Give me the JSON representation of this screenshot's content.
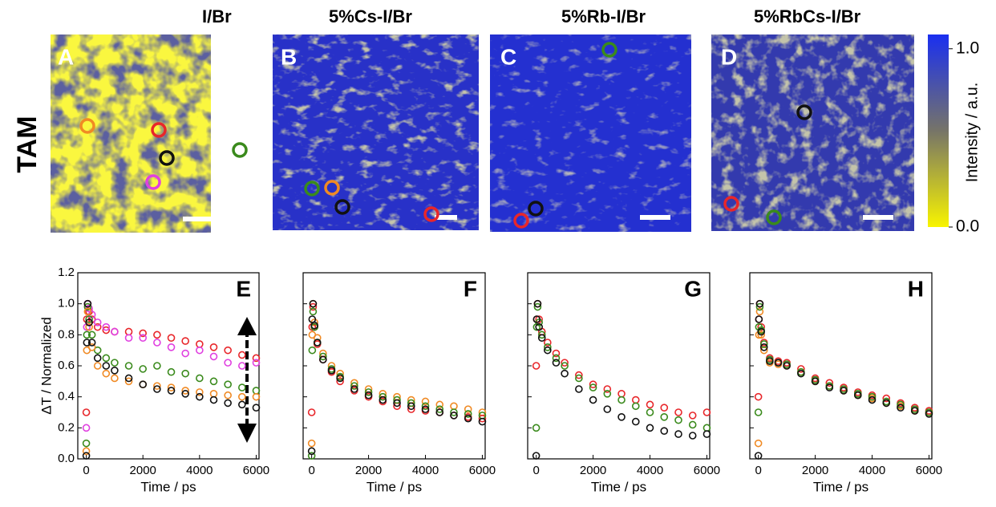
{
  "row_label": "TAM",
  "maps": [
    {
      "title": "I/Br",
      "label": "A"
    },
    {
      "title": "5%Cs-I/Br",
      "label": "B"
    },
    {
      "title": "5%Rb-I/Br",
      "label": "C"
    },
    {
      "title": "5%RbCs-I/Br",
      "label": "D"
    }
  ],
  "colorbar": {
    "label": "Intensity / a.u.",
    "lim": [
      0,
      1.08
    ],
    "ticks": [
      {
        "value": 1.0,
        "label": "1.0"
      },
      {
        "value": 0.0,
        "label": "0.0"
      }
    ]
  },
  "chart_data": [
    {
      "type": "scatter",
      "panel_label": "E",
      "xlabel": "Time / ps",
      "ylabel": "ΔT / Normalized",
      "x": [
        0,
        20,
        50,
        100,
        200,
        400,
        700,
        1000,
        1500,
        2000,
        2500,
        3000,
        3500,
        4000,
        4500,
        5000,
        5500,
        6000
      ],
      "series": [
        {
          "color": "#e8262a",
          "values": [
            0.3,
            0.9,
            1.0,
            0.95,
            0.9,
            0.85,
            0.83,
            0.82,
            0.82,
            0.81,
            0.8,
            0.78,
            0.76,
            0.74,
            0.72,
            0.7,
            0.67,
            0.65
          ]
        },
        {
          "color": "#e040e0",
          "values": [
            0.2,
            0.85,
            1.0,
            0.97,
            0.93,
            0.88,
            0.85,
            0.82,
            0.78,
            0.78,
            0.75,
            0.72,
            0.68,
            0.7,
            0.66,
            0.62,
            0.6,
            0.62
          ]
        },
        {
          "color": "#3a8a1c",
          "values": [
            0.1,
            0.8,
            0.98,
            0.9,
            0.8,
            0.7,
            0.65,
            0.62,
            0.6,
            0.58,
            0.6,
            0.56,
            0.55,
            0.52,
            0.5,
            0.48,
            0.46,
            0.44
          ]
        },
        {
          "color": "#f08a24",
          "values": [
            0.05,
            0.7,
            0.95,
            0.85,
            0.72,
            0.6,
            0.55,
            0.52,
            0.5,
            0.48,
            0.47,
            0.46,
            0.44,
            0.43,
            0.42,
            0.41,
            0.4,
            0.4
          ]
        },
        {
          "color": "#111111",
          "values": [
            0.02,
            0.75,
            1.0,
            0.88,
            0.75,
            0.65,
            0.6,
            0.57,
            0.52,
            0.48,
            0.45,
            0.44,
            0.42,
            0.4,
            0.38,
            0.36,
            0.35,
            0.33
          ]
        }
      ],
      "xlim": [
        -300,
        6100
      ],
      "ylim": [
        0,
        1.2
      ],
      "xticks": [
        0,
        2000,
        4000,
        6000
      ],
      "yticks": [
        {
          "value": 0,
          "label": "0.0"
        },
        {
          "value": 0.2,
          "label": "0.2"
        },
        {
          "value": 0.4,
          "label": "0.4"
        },
        {
          "value": 0.6,
          "label": "0.6"
        },
        {
          "value": 0.8,
          "label": "0.8"
        },
        {
          "value": 1.0,
          "label": "1.0"
        },
        {
          "value": 1.2,
          "label": "1.2"
        }
      ]
    },
    {
      "type": "scatter",
      "panel_label": "F",
      "xlabel": "Time / ps",
      "x": [
        0,
        20,
        50,
        100,
        200,
        400,
        700,
        1000,
        1500,
        2000,
        2500,
        3000,
        3500,
        4000,
        4500,
        5000,
        5500,
        6000
      ],
      "series": [
        {
          "color": "#f08a24",
          "values": [
            0.1,
            0.8,
            1.0,
            0.88,
            0.78,
            0.68,
            0.6,
            0.55,
            0.49,
            0.45,
            0.42,
            0.4,
            0.38,
            0.37,
            0.35,
            0.34,
            0.32,
            0.3
          ]
        },
        {
          "color": "#e8262a",
          "values": [
            0.3,
            0.85,
            0.98,
            0.85,
            0.74,
            0.64,
            0.56,
            0.5,
            0.44,
            0.4,
            0.37,
            0.34,
            0.32,
            0.31,
            0.3,
            0.28,
            0.27,
            0.26
          ]
        },
        {
          "color": "#3a8a1c",
          "values": [
            0.02,
            0.7,
            0.95,
            0.85,
            0.75,
            0.66,
            0.58,
            0.53,
            0.47,
            0.43,
            0.4,
            0.38,
            0.36,
            0.34,
            0.32,
            0.3,
            0.29,
            0.28
          ]
        },
        {
          "color": "#111111",
          "values": [
            0.05,
            0.9,
            1.0,
            0.86,
            0.75,
            0.64,
            0.57,
            0.52,
            0.45,
            0.41,
            0.38,
            0.36,
            0.34,
            0.32,
            0.3,
            0.28,
            0.26,
            0.24
          ]
        }
      ],
      "xlim": [
        -300,
        6100
      ],
      "ylim": [
        0,
        1.2
      ],
      "xticks": [
        0,
        2000,
        4000,
        6000
      ],
      "yticks": [
        0,
        0.2,
        0.4,
        0.6,
        0.8,
        1.0,
        1.2
      ]
    },
    {
      "type": "scatter",
      "panel_label": "G",
      "xlabel": "Time / ps",
      "x": [
        0,
        20,
        50,
        100,
        200,
        400,
        700,
        1000,
        1500,
        2000,
        2500,
        3000,
        3500,
        4000,
        4500,
        5000,
        5500,
        6000
      ],
      "series": [
        {
          "color": "#e8262a",
          "values": [
            0.6,
            0.9,
            1.0,
            0.9,
            0.82,
            0.75,
            0.68,
            0.62,
            0.54,
            0.48,
            0.45,
            0.42,
            0.38,
            0.35,
            0.33,
            0.3,
            0.28,
            0.3
          ]
        },
        {
          "color": "#3a8a1c",
          "values": [
            0.2,
            0.85,
            0.98,
            0.88,
            0.8,
            0.72,
            0.65,
            0.6,
            0.52,
            0.46,
            0.42,
            0.38,
            0.34,
            0.3,
            0.27,
            0.25,
            0.22,
            0.2
          ]
        },
        {
          "color": "#111111",
          "values": [
            0.02,
            0.9,
            1.0,
            0.85,
            0.78,
            0.7,
            0.62,
            0.55,
            0.45,
            0.38,
            0.32,
            0.27,
            0.24,
            0.2,
            0.18,
            0.16,
            0.15,
            0.16
          ]
        }
      ],
      "xlim": [
        -300,
        6100
      ],
      "ylim": [
        0,
        1.2
      ],
      "xticks": [
        0,
        2000,
        4000,
        6000
      ],
      "yticks": [
        0,
        0.2,
        0.4,
        0.6,
        0.8,
        1.0,
        1.2
      ]
    },
    {
      "type": "scatter",
      "panel_label": "H",
      "xlabel": "Time / ps",
      "x": [
        0,
        20,
        50,
        100,
        200,
        400,
        700,
        1000,
        1500,
        2000,
        2500,
        3000,
        3500,
        4000,
        4500,
        5000,
        5500,
        6000
      ],
      "series": [
        {
          "color": "#e8262a",
          "values": [
            0.4,
            0.9,
            1.0,
            0.85,
            0.75,
            0.65,
            0.63,
            0.62,
            0.58,
            0.52,
            0.49,
            0.46,
            0.43,
            0.41,
            0.39,
            0.36,
            0.33,
            0.31
          ]
        },
        {
          "color": "#f08a24",
          "values": [
            0.1,
            0.8,
            0.95,
            0.8,
            0.7,
            0.62,
            0.61,
            0.6,
            0.56,
            0.5,
            0.47,
            0.44,
            0.41,
            0.39,
            0.36,
            0.34,
            0.31,
            0.3
          ]
        },
        {
          "color": "#3a8a1c",
          "values": [
            0.3,
            0.85,
            0.98,
            0.83,
            0.74,
            0.64,
            0.62,
            0.61,
            0.56,
            0.51,
            0.47,
            0.45,
            0.42,
            0.4,
            0.37,
            0.35,
            0.32,
            0.3
          ]
        },
        {
          "color": "#111111",
          "values": [
            0.02,
            0.9,
            1.0,
            0.82,
            0.72,
            0.63,
            0.62,
            0.6,
            0.55,
            0.5,
            0.46,
            0.44,
            0.41,
            0.38,
            0.36,
            0.33,
            0.31,
            0.29
          ]
        }
      ],
      "xlim": [
        -300,
        6100
      ],
      "ylim": [
        0,
        1.2
      ],
      "xticks": [
        0,
        2000,
        4000,
        6000
      ],
      "yticks": [
        0,
        0.2,
        0.4,
        0.6,
        0.8,
        1.0,
        1.2
      ]
    }
  ]
}
